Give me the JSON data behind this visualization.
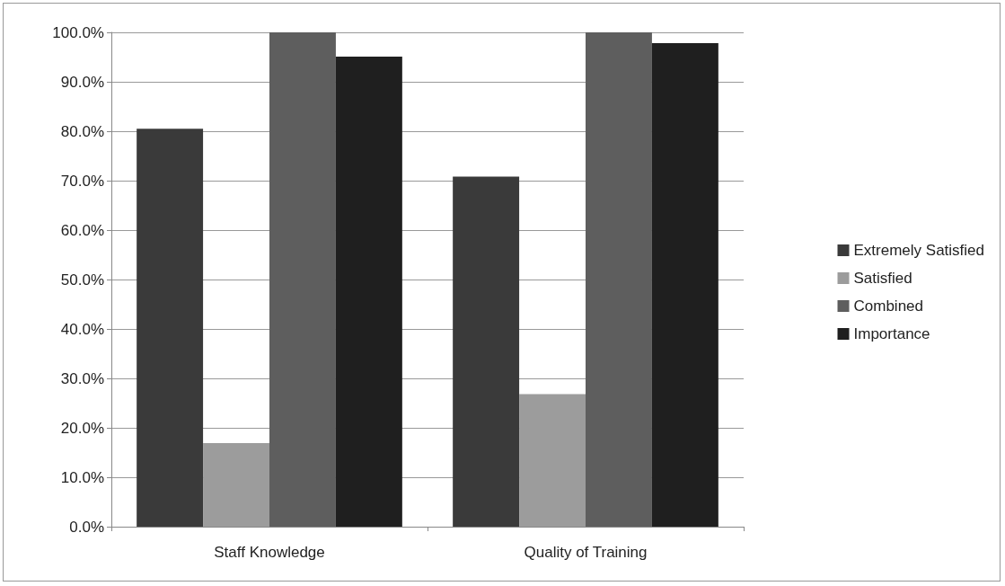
{
  "chart_data": {
    "type": "bar",
    "categories": [
      "Staff Knowledge",
      "Quality of Training"
    ],
    "series": [
      {
        "name": "Extremely Satisfied",
        "color": "#3a3a3a",
        "values": [
          80.5,
          70.8
        ]
      },
      {
        "name": "Satisfied",
        "color": "#9c9c9c",
        "values": [
          16.9,
          26.8
        ]
      },
      {
        "name": "Combined",
        "color": "#5e5e5e",
        "values": [
          100,
          100
        ]
      },
      {
        "name": "Importance",
        "color": "#1f1f1f",
        "values": [
          95.1,
          97.8
        ]
      }
    ],
    "ylim": [
      0,
      100
    ],
    "yticks": [
      {
        "value": 0,
        "label": "0.0%"
      },
      {
        "value": 10,
        "label": "10.0%"
      },
      {
        "value": 20,
        "label": "20.0%"
      },
      {
        "value": 30,
        "label": "30.0%"
      },
      {
        "value": 40,
        "label": "40.0%"
      },
      {
        "value": 50,
        "label": "50.0%"
      },
      {
        "value": 60,
        "label": "60.0%"
      },
      {
        "value": 70,
        "label": "70.0%"
      },
      {
        "value": 80,
        "label": "80.0%"
      },
      {
        "value": 90,
        "label": "90.0%"
      },
      {
        "value": 100,
        "label": "100.0%"
      }
    ],
    "grid": true,
    "legend": "right"
  }
}
